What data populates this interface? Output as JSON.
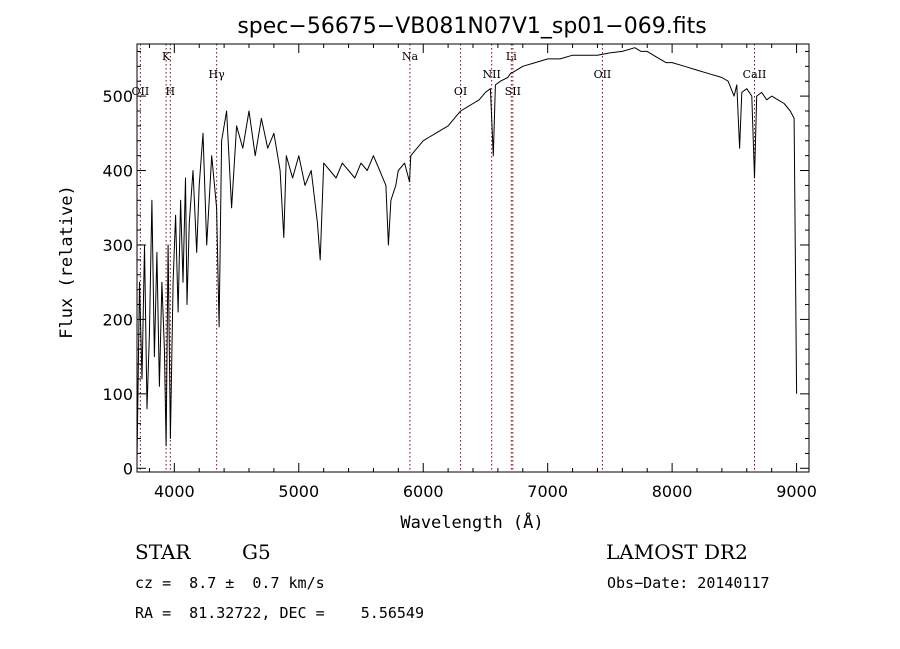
{
  "chart_data": {
    "type": "line",
    "title": "spec−56675−VB081N07V1_sp01−069.fits",
    "xlabel": "Wavelength (Å)",
    "ylabel": "Flux (relative)",
    "xlim": [
      3700,
      9100
    ],
    "ylim": [
      -5,
      570
    ],
    "xticks": [
      4000,
      5000,
      6000,
      7000,
      8000,
      9000
    ],
    "yticks": [
      0,
      100,
      200,
      300,
      400,
      500
    ],
    "grid": false,
    "spectrum": {
      "x": [
        3700,
        3720,
        3740,
        3760,
        3780,
        3800,
        3820,
        3840,
        3860,
        3880,
        3900,
        3920,
        3934,
        3950,
        3968,
        3990,
        4010,
        4030,
        4050,
        4070,
        4090,
        4102,
        4120,
        4150,
        4180,
        4200,
        4230,
        4260,
        4300,
        4340,
        4360,
        4380,
        4420,
        4460,
        4500,
        4550,
        4600,
        4650,
        4700,
        4750,
        4800,
        4850,
        4880,
        4900,
        4950,
        5000,
        5050,
        5100,
        5150,
        5172,
        5200,
        5250,
        5300,
        5350,
        5400,
        5450,
        5500,
        5550,
        5600,
        5650,
        5700,
        5720,
        5740,
        5780,
        5800,
        5850,
        5890,
        5900,
        5950,
        6000,
        6050,
        6100,
        6150,
        6200,
        6250,
        6300,
        6350,
        6400,
        6450,
        6500,
        6540,
        6563,
        6580,
        6620,
        6680,
        6700,
        6750,
        6800,
        6900,
        7000,
        7100,
        7200,
        7300,
        7400,
        7500,
        7600,
        7700,
        7750,
        7800,
        7850,
        7900,
        7950,
        8000,
        8100,
        8200,
        8300,
        8400,
        8450,
        8498,
        8520,
        8542,
        8560,
        8600,
        8640,
        8662,
        8680,
        8720,
        8760,
        8800,
        8850,
        8900,
        8950,
        8980,
        9000
      ],
      "y": [
        10,
        250,
        120,
        300,
        80,
        180,
        360,
        150,
        290,
        110,
        250,
        160,
        30,
        300,
        40,
        250,
        340,
        210,
        360,
        250,
        390,
        220,
        330,
        400,
        290,
        380,
        450,
        300,
        420,
        350,
        190,
        440,
        480,
        350,
        460,
        430,
        480,
        420,
        470,
        430,
        450,
        400,
        310,
        420,
        390,
        420,
        380,
        400,
        330,
        280,
        410,
        400,
        390,
        410,
        400,
        390,
        410,
        400,
        420,
        400,
        380,
        300,
        360,
        380,
        400,
        410,
        385,
        420,
        430,
        440,
        445,
        450,
        455,
        460,
        470,
        480,
        485,
        490,
        495,
        505,
        510,
        420,
        515,
        520,
        525,
        530,
        535,
        540,
        545,
        550,
        550,
        555,
        555,
        555,
        558,
        560,
        565,
        560,
        560,
        555,
        550,
        545,
        545,
        540,
        535,
        530,
        525,
        520,
        500,
        515,
        430,
        505,
        510,
        500,
        390,
        500,
        505,
        495,
        500,
        495,
        490,
        480,
        470,
        100
      ]
    },
    "lines": [
      {
        "label": "OII",
        "wavelength": 3727,
        "row": 2
      },
      {
        "label": "K",
        "wavelength": 3934,
        "row": 0
      },
      {
        "label": "H",
        "wavelength": 3968,
        "row": 2
      },
      {
        "label": "Hγ",
        "wavelength": 4340,
        "row": 1
      },
      {
        "label": "Na",
        "wavelength": 5893,
        "row": 0
      },
      {
        "label": "OI",
        "wavelength": 6300,
        "row": 2
      },
      {
        "label": "NII",
        "wavelength": 6550,
        "row": 1
      },
      {
        "label": "Li",
        "wavelength": 6708,
        "row": 0
      },
      {
        "label": "SII",
        "wavelength": 6720,
        "row": 2
      },
      {
        "label": "OII",
        "wavelength": 7440,
        "row": 1
      },
      {
        "label": "CaII",
        "wavelength": 8662,
        "row": 1
      }
    ]
  },
  "info": {
    "object_class": "STAR",
    "subclass": "G5",
    "survey": "LAMOST DR2",
    "redshift": "cz =  8.7 ±  0.7 km/s",
    "obs_date": "Obs−Date: 20140117",
    "coords": "RA =  81.32722, DEC =    5.56549"
  },
  "colors": {
    "spectrum": "#000000",
    "line_marker": "#8b0000",
    "axes": "#000000",
    "background": "#ffffff"
  }
}
